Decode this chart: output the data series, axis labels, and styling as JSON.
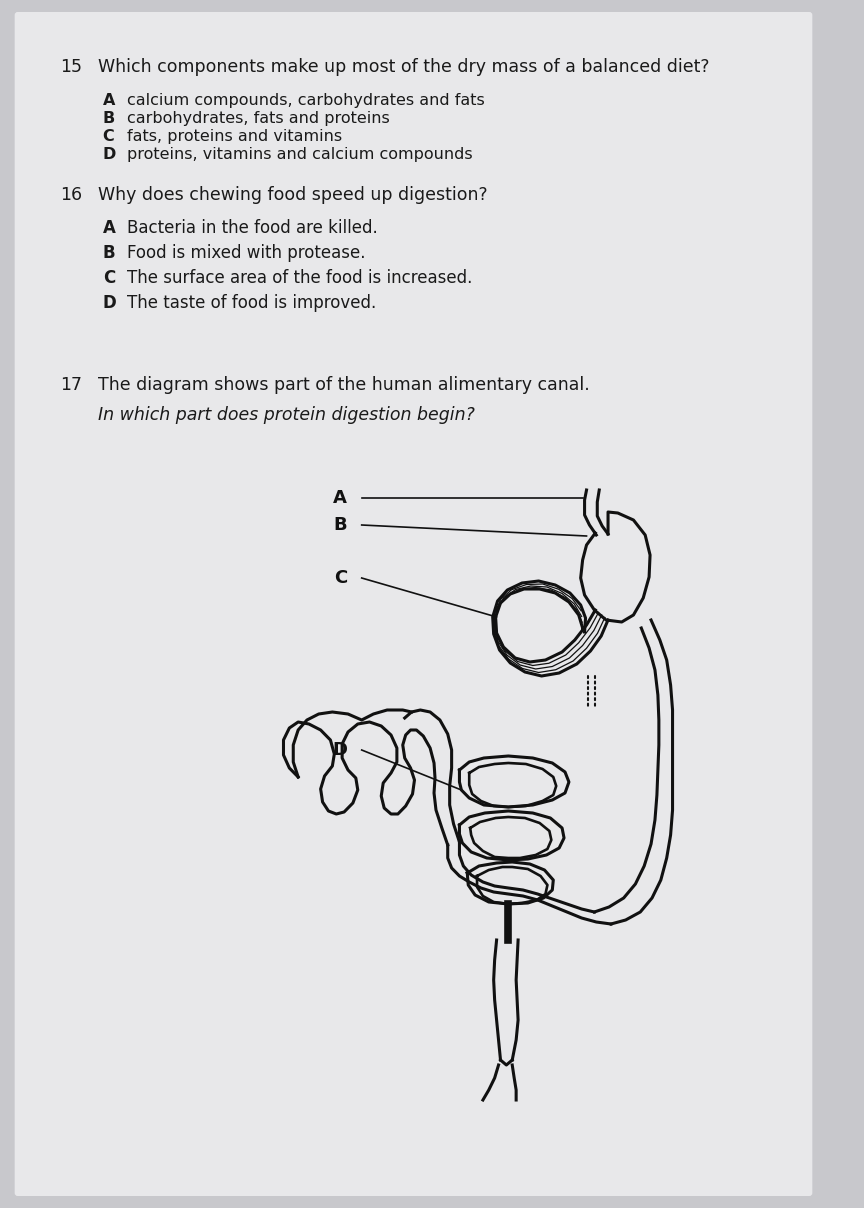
{
  "background_color": "#c8c8cc",
  "paper_color": "#e8e8ea",
  "text_color": "#1a1a1a",
  "q15_number": "15",
  "q15_question": "Which components make up most of the dry mass of a balanced diet?",
  "q15_options": [
    [
      "A",
      "calcium compounds, carbohydrates and fats"
    ],
    [
      "B",
      "carbohydrates, fats and proteins"
    ],
    [
      "C",
      "fats, proteins and vitamins"
    ],
    [
      "D",
      "proteins, vitamins and calcium compounds"
    ]
  ],
  "q16_number": "16",
  "q16_question": "Why does chewing food speed up digestion?",
  "q16_options": [
    [
      "A",
      "Bacteria in the food are killed."
    ],
    [
      "B",
      "Food is mixed with protease."
    ],
    [
      "C",
      "The surface area of the food is increased."
    ],
    [
      "D",
      "The taste of food is improved."
    ]
  ],
  "q17_number": "17",
  "q17_question": "The diagram shows part of the human alimentary canal.",
  "q17_subquestion": "In which part does protein digestion begin?"
}
